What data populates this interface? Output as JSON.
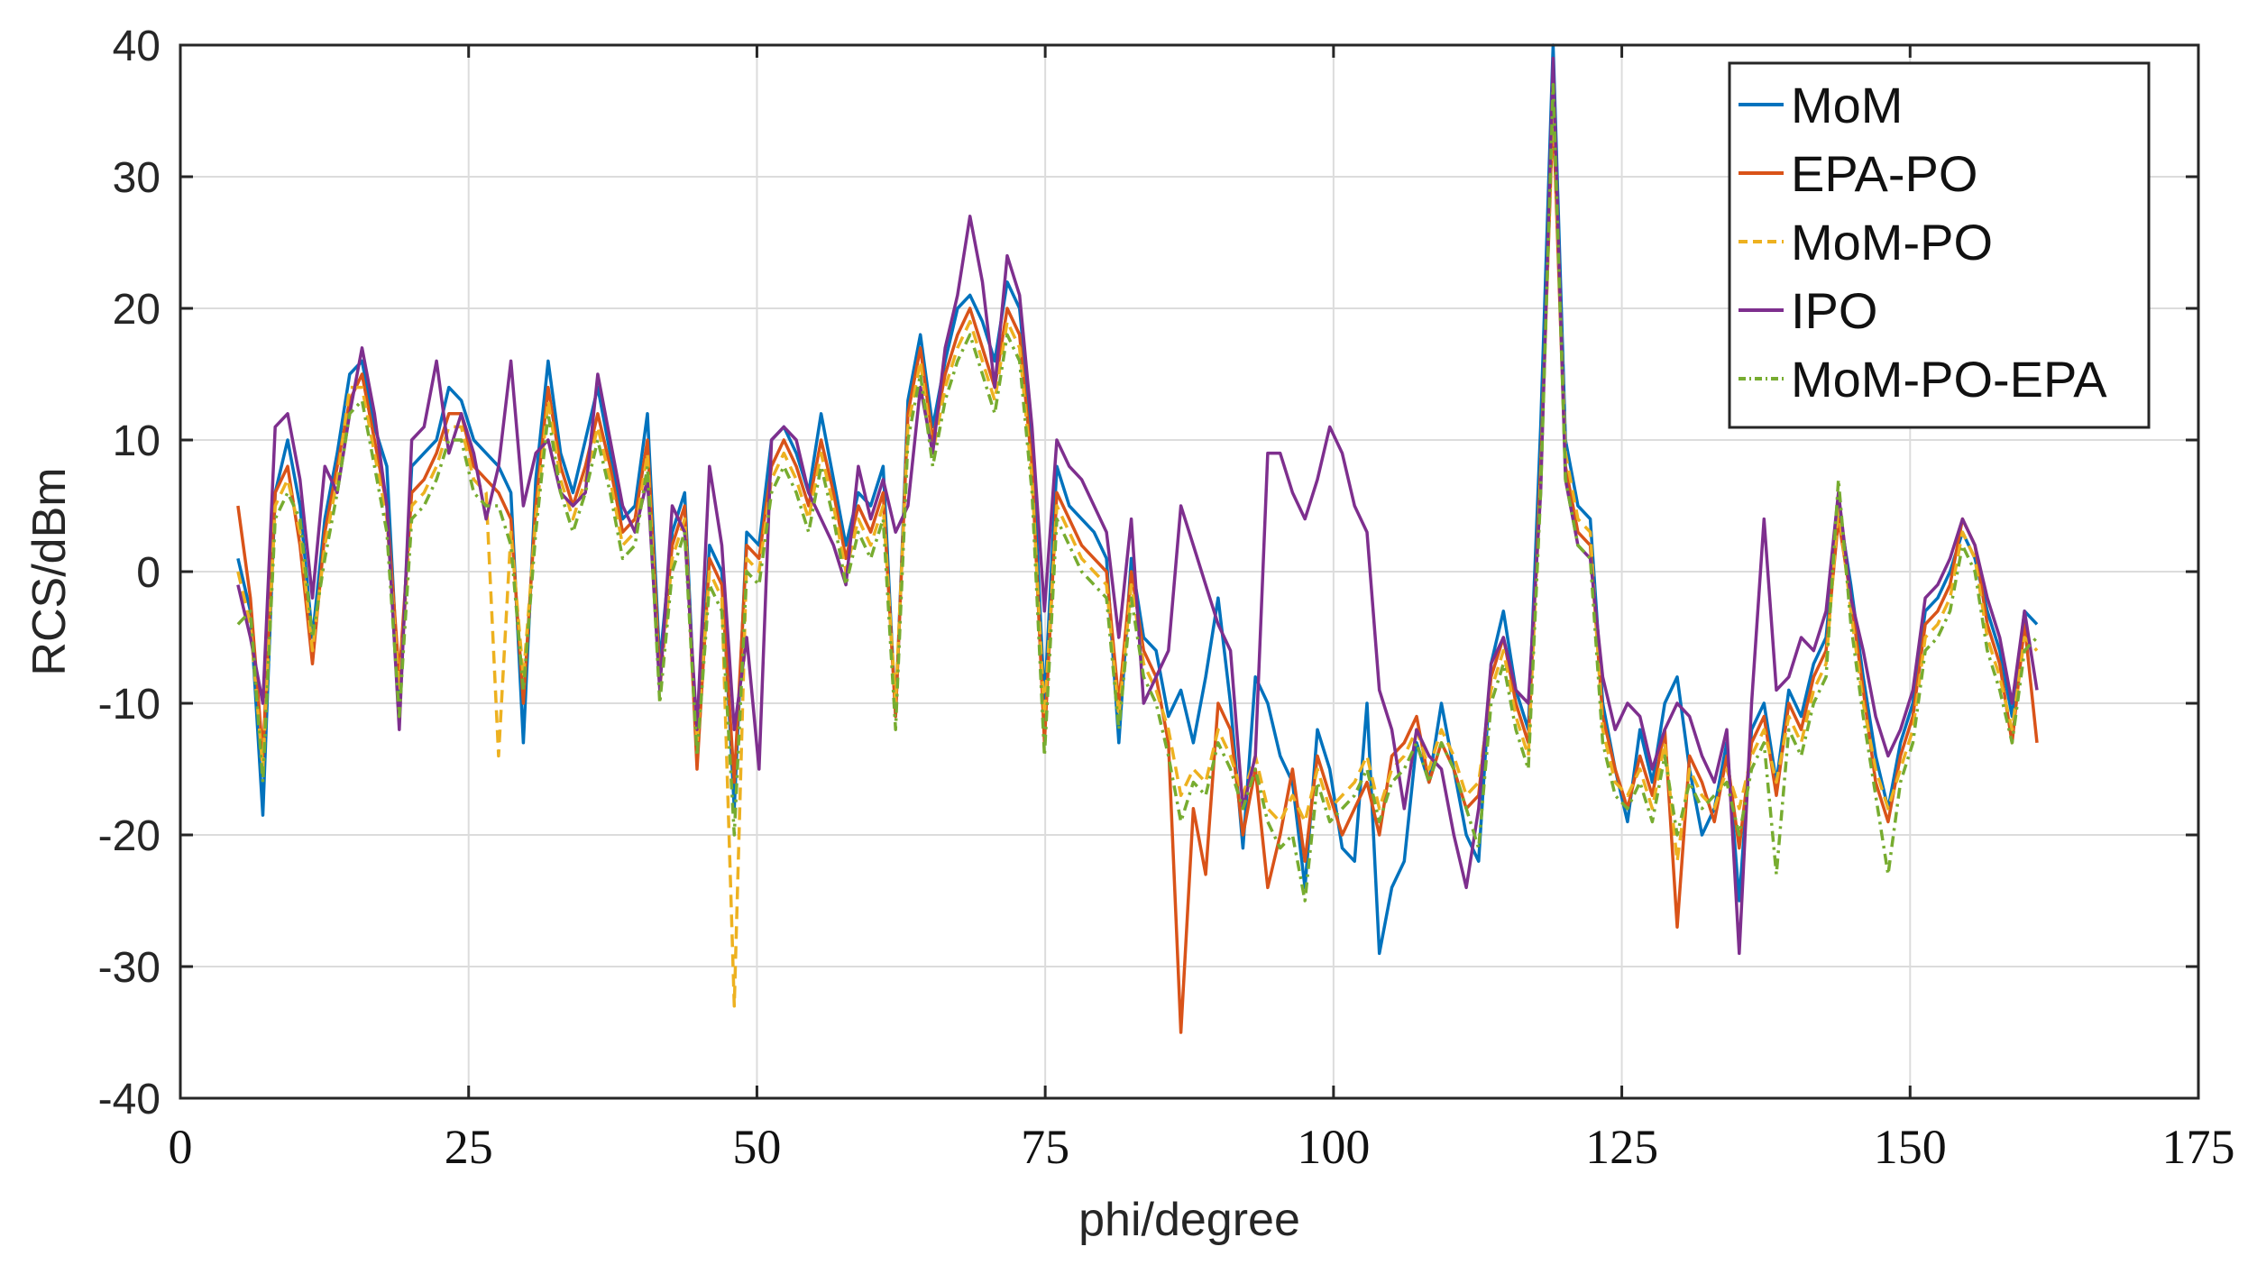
{
  "chart_data": {
    "type": "line",
    "title": "",
    "xlabel": "phi/degree",
    "ylabel": "RCS/dBm",
    "xlim": [
      0,
      175
    ],
    "ylim": [
      -40,
      40
    ],
    "xticks": [
      0,
      25,
      50,
      75,
      100,
      125,
      150,
      175
    ],
    "yticks": [
      -40,
      -30,
      -20,
      -10,
      0,
      10,
      20,
      30,
      40
    ],
    "grid": true,
    "legend_position": "top-right",
    "x_start": 5,
    "x_end": 161,
    "series": [
      {
        "name": "MoM",
        "color": "#0072BD",
        "style": "solid",
        "values": [
          1,
          -3,
          -18.5,
          6,
          10,
          5,
          -5,
          4,
          9,
          15,
          16,
          11,
          8,
          -10,
          8,
          9,
          10,
          14,
          13,
          10,
          9,
          8,
          6,
          -13,
          7,
          16,
          9,
          6,
          10,
          14,
          9,
          4,
          5,
          12,
          -7,
          3,
          6,
          -14,
          2,
          0,
          -18,
          3,
          2,
          10,
          11,
          9,
          6,
          12,
          7,
          2,
          6,
          5,
          8,
          -11,
          13,
          18,
          11,
          16,
          20,
          21,
          19,
          16,
          22,
          20,
          10,
          -10,
          8,
          5,
          4,
          3,
          1,
          -13,
          1,
          -5,
          -6,
          -11,
          -9,
          -13,
          -8,
          -2,
          -10,
          -21,
          -8,
          -10,
          -14,
          -16,
          -24,
          -12,
          -15,
          -21,
          -22,
          -10,
          -29,
          -24,
          -22,
          -13,
          -16,
          -10,
          -15,
          -20,
          -22,
          -7,
          -3,
          -9,
          -12,
          11,
          40,
          10,
          5,
          4,
          -10,
          -15,
          -19,
          -12,
          -16,
          -10,
          -8,
          -15,
          -20,
          -18,
          -13,
          -25,
          -12,
          -10,
          -16,
          -9,
          -11,
          -7,
          -5,
          5,
          -1,
          -8,
          -14,
          -18,
          -13,
          -10,
          -3,
          -2,
          0,
          3,
          1,
          -3,
          -6,
          -11,
          -3,
          -4
        ]
      },
      {
        "name": "EPA-PO",
        "color": "#D95319",
        "style": "solid",
        "values": [
          5,
          -2,
          -14,
          6,
          8,
          2,
          -7,
          3,
          8,
          13,
          15,
          10,
          5,
          -8,
          6,
          7,
          9,
          12,
          12,
          8,
          7,
          6,
          4,
          -10,
          5,
          14,
          8,
          5,
          8,
          12,
          8,
          3,
          4,
          10,
          -8,
          2,
          5,
          -15,
          1,
          -1,
          -16,
          2,
          1,
          8,
          10,
          8,
          5,
          10,
          6,
          1,
          5,
          3,
          6,
          -11,
          12,
          17,
          10,
          15,
          18,
          20,
          17,
          14,
          20,
          18,
          8,
          -13,
          6,
          4,
          2,
          1,
          0,
          -10,
          0,
          -6,
          -8,
          -13,
          -35,
          -18,
          -23,
          -10,
          -12,
          -20,
          -15,
          -24,
          -20,
          -15,
          -22,
          -14,
          -17,
          -20,
          -18,
          -16,
          -20,
          -14,
          -13,
          -11,
          -16,
          -13,
          -15,
          -18,
          -17,
          -8,
          -5,
          -10,
          -13,
          8,
          35,
          8,
          3,
          2,
          -11,
          -15,
          -18,
          -14,
          -17,
          -12,
          -27,
          -14,
          -16,
          -19,
          -14,
          -21,
          -13,
          -11,
          -17,
          -10,
          -12,
          -8,
          -6,
          4,
          -2,
          -9,
          -16,
          -19,
          -14,
          -11,
          -4,
          -3,
          -1,
          4,
          2,
          -4,
          -7,
          -13,
          -4,
          -13
        ]
      },
      {
        "name": "MoM-PO",
        "color": "#EDB120",
        "style": "dashed",
        "values": [
          0,
          -4,
          -15,
          5,
          7,
          3,
          -6,
          2,
          7,
          14,
          14,
          9,
          4,
          -9,
          5,
          6,
          8,
          11,
          11,
          7,
          6,
          -14,
          3,
          -8,
          4,
          13,
          7,
          4,
          7,
          11,
          7,
          2,
          3,
          9,
          -9,
          1,
          4,
          -13,
          0,
          -2,
          -33,
          1,
          0,
          7,
          9,
          7,
          4,
          9,
          5,
          0,
          4,
          2,
          5,
          -10,
          11,
          16,
          9,
          14,
          17,
          19,
          16,
          13,
          19,
          17,
          7,
          -11,
          5,
          3,
          1,
          0,
          -1,
          -11,
          -1,
          -7,
          -9,
          -12,
          -17,
          -15,
          -16,
          -12,
          -14,
          -17,
          -14,
          -18,
          -19,
          -17,
          -19,
          -15,
          -18,
          -17,
          -16,
          -14,
          -18,
          -15,
          -14,
          -12,
          -15,
          -12,
          -14,
          -17,
          -16,
          -9,
          -6,
          -11,
          -14,
          7,
          36,
          9,
          4,
          3,
          -12,
          -16,
          -17,
          -15,
          -18,
          -13,
          -22,
          -15,
          -17,
          -18,
          -15,
          -18,
          -14,
          -12,
          -16,
          -11,
          -13,
          -9,
          -7,
          5,
          -3,
          -10,
          -15,
          -18,
          -15,
          -12,
          -5,
          -4,
          -2,
          3,
          1,
          -5,
          -8,
          -12,
          -5,
          -6
        ]
      },
      {
        "name": "IPO",
        "color": "#7E2F8E",
        "style": "solid",
        "values": [
          -1,
          -5,
          -10,
          11,
          12,
          7,
          -2,
          8,
          6,
          12,
          17,
          12,
          5,
          -12,
          10,
          11,
          16,
          9,
          12,
          9,
          4,
          8,
          16,
          5,
          9,
          10,
          6,
          5,
          6,
          15,
          10,
          5,
          3,
          7,
          -9,
          5,
          3,
          -12,
          8,
          2,
          -12,
          -5,
          -15,
          10,
          11,
          10,
          6,
          4,
          2,
          -1,
          8,
          4,
          7,
          3,
          5,
          14,
          9,
          17,
          21,
          27,
          22,
          14,
          24,
          21,
          11,
          -3,
          10,
          8,
          7,
          5,
          3,
          -5,
          4,
          -10,
          -8,
          -6,
          5,
          2,
          -1,
          -4,
          -6,
          -18,
          -14,
          9,
          9,
          6,
          4,
          7,
          11,
          9,
          5,
          3,
          -9,
          -12,
          -18,
          -12,
          -14,
          -15,
          -20,
          -24,
          -18,
          -7,
          -5,
          -9,
          -10,
          6,
          39,
          7,
          2,
          1,
          -8,
          -12,
          -10,
          -11,
          -15,
          -12,
          -10,
          -11,
          -14,
          -16,
          -12,
          -29,
          -10,
          4,
          -9,
          -8,
          -5,
          -6,
          -3,
          6,
          -2,
          -6,
          -11,
          -14,
          -12,
          -9,
          -2,
          -1,
          1,
          4,
          2,
          -2,
          -5,
          -10,
          -3,
          -9
        ]
      },
      {
        "name": "MoM-PO-EPA",
        "color": "#77AC30",
        "style": "dashdot",
        "values": [
          -4,
          -3,
          -16,
          4,
          6,
          4,
          -5,
          1,
          6,
          12,
          13,
          8,
          3,
          -11,
          4,
          5,
          7,
          10,
          10,
          6,
          5,
          5,
          2,
          -9,
          3,
          12,
          6,
          3,
          6,
          10,
          6,
          1,
          2,
          8,
          -10,
          0,
          3,
          -14,
          -1,
          -3,
          -20,
          0,
          -1,
          6,
          8,
          6,
          3,
          8,
          4,
          -1,
          3,
          1,
          4,
          -12,
          10,
          15,
          8,
          13,
          16,
          18,
          15,
          12,
          18,
          16,
          6,
          -14,
          4,
          2,
          0,
          -1,
          -2,
          -12,
          -2,
          -8,
          -10,
          -14,
          -19,
          -16,
          -17,
          -13,
          -15,
          -18,
          -15,
          -19,
          -21,
          -20,
          -25,
          -16,
          -19,
          -18,
          -17,
          -15,
          -19,
          -16,
          -15,
          -13,
          -16,
          -13,
          -15,
          -18,
          -21,
          -10,
          -7,
          -12,
          -15,
          6,
          37,
          7,
          2,
          1,
          -13,
          -17,
          -18,
          -16,
          -19,
          -14,
          -20,
          -16,
          -18,
          -17,
          -16,
          -20,
          -15,
          -13,
          -23,
          -12,
          -14,
          -10,
          -8,
          7,
          -4,
          -11,
          -17,
          -23,
          -16,
          -13,
          -6,
          -5,
          -3,
          2,
          0,
          -6,
          -9,
          -13,
          -6,
          -5
        ]
      }
    ]
  }
}
